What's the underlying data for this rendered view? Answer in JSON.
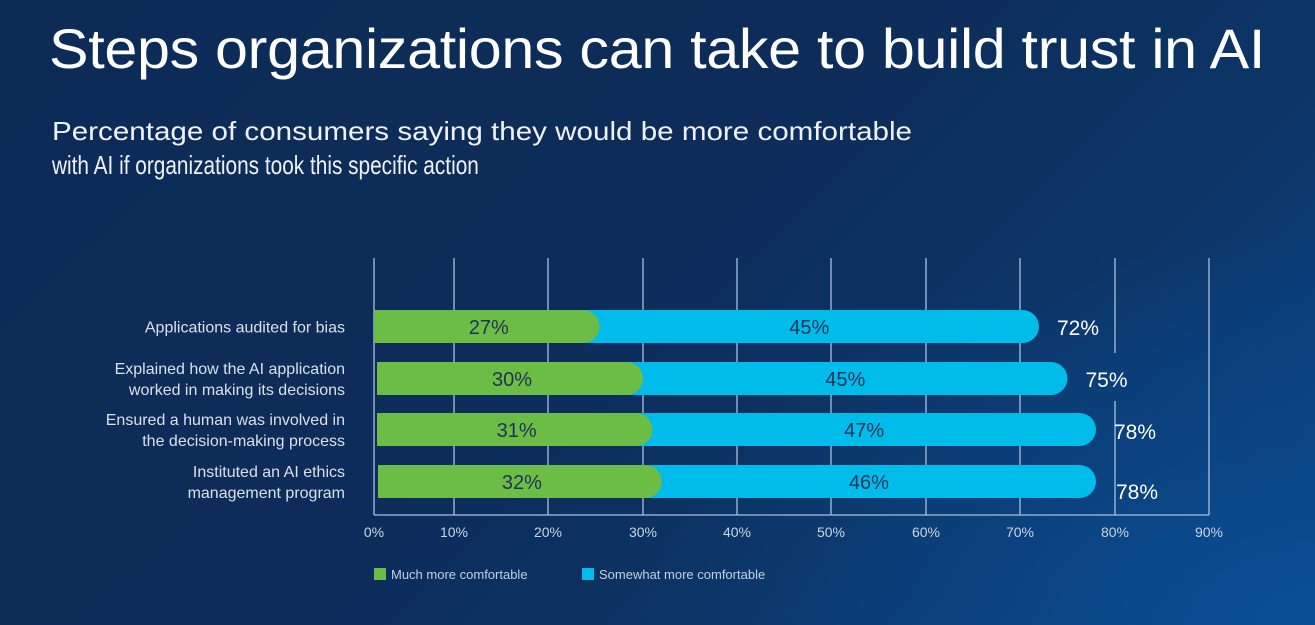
{
  "header": {
    "title": "Steps organizations can take to build trust in AI",
    "subtitle_lines": [
      "Percentage of consumers saying they would be more comfortable",
      "with AI if organizations took this specific action"
    ]
  },
  "chart_data": {
    "type": "bar",
    "orientation": "horizontal",
    "stacked": true,
    "title": "Steps organizations can take to build trust in AI",
    "subtitle": "Percentage of consumers saying they would be more comfortable with AI if organizations took this specific action",
    "categories": [
      [
        "Applications audited for bias"
      ],
      [
        "Explained how the AI application",
        "worked in making its decisions"
      ],
      [
        "Ensured a human was involved in",
        "the decision-making process"
      ],
      [
        "Instituted an AI ethics",
        "management program"
      ]
    ],
    "series": [
      {
        "name": "Much more comfortable",
        "color": "#6cbd45",
        "values": [
          27,
          30,
          31,
          32
        ],
        "labels": [
          "27%",
          "30%",
          "31%",
          "32%"
        ]
      },
      {
        "name": "Somewhat more comfortable",
        "color": "#00bceb",
        "values": [
          45,
          45,
          47,
          46
        ],
        "labels": [
          "45%",
          "45%",
          "47%",
          "46%"
        ]
      }
    ],
    "totals": [
      72,
      75,
      78,
      78
    ],
    "total_labels": [
      "72%",
      "75%",
      "78%",
      "78%"
    ],
    "xticks": [
      0,
      10,
      20,
      30,
      40,
      50,
      60,
      70,
      80,
      90
    ],
    "xtick_labels": [
      "0%",
      "10%",
      "20%",
      "30%",
      "40%",
      "50%",
      "60%",
      "70%",
      "80%",
      "90%"
    ],
    "xlim": [
      0,
      90
    ],
    "xlabel": "",
    "ylabel": "",
    "grid": true,
    "legend": {
      "position": "bottom-left",
      "entries": [
        "Much more comfortable",
        "Somewhat more comfortable"
      ]
    }
  }
}
